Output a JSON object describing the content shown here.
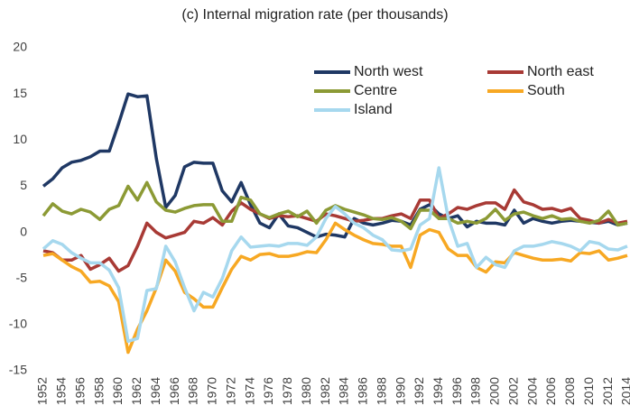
{
  "chart_data": {
    "type": "line",
    "title": "(c) Internal migration rate (per thousands)",
    "x": [
      1952,
      1953,
      1954,
      1955,
      1956,
      1957,
      1958,
      1959,
      1960,
      1961,
      1962,
      1963,
      1964,
      1965,
      1966,
      1967,
      1968,
      1969,
      1970,
      1971,
      1972,
      1973,
      1974,
      1975,
      1976,
      1977,
      1978,
      1979,
      1980,
      1981,
      1982,
      1983,
      1984,
      1985,
      1986,
      1987,
      1988,
      1989,
      1990,
      1991,
      1992,
      1993,
      1994,
      1995,
      1996,
      1997,
      1998,
      1999,
      2000,
      2001,
      2002,
      2003,
      2004,
      2005,
      2006,
      2007,
      2008,
      2009,
      2010,
      2011,
      2012,
      2013,
      2014
    ],
    "xlim": [
      1952,
      2014
    ],
    "xticks": [
      1952,
      1954,
      1956,
      1958,
      1960,
      1962,
      1964,
      1966,
      1968,
      1970,
      1972,
      1974,
      1976,
      1978,
      1980,
      1982,
      1984,
      1986,
      1988,
      1990,
      1992,
      1994,
      1996,
      1998,
      2000,
      2002,
      2004,
      2006,
      2008,
      2010,
      2012,
      2014
    ],
    "ylim": [
      -15,
      20
    ],
    "yticks": [
      -15,
      -10,
      -5,
      0,
      5,
      10,
      15,
      20
    ],
    "grid": false,
    "legend": "upper right",
    "series": [
      {
        "name": "North west",
        "color": "#1f3864",
        "values": [
          5.0,
          5.8,
          7.0,
          7.6,
          7.8,
          8.2,
          8.8,
          8.8,
          11.8,
          15.0,
          14.7,
          14.8,
          8.0,
          2.7,
          4.0,
          7.1,
          7.6,
          7.5,
          7.5,
          4.5,
          3.3,
          5.4,
          3.0,
          1.0,
          0.5,
          2.0,
          0.7,
          0.5,
          0.0,
          -0.5,
          -0.2,
          -0.3,
          -0.5,
          1.5,
          1.0,
          0.8,
          1.0,
          1.3,
          1.2,
          0.8,
          2.5,
          3.0,
          2.0,
          1.5,
          1.8,
          0.6,
          1.2,
          1.0,
          1.0,
          0.8,
          2.4,
          1.0,
          1.5,
          1.2,
          1.0,
          1.2,
          1.3,
          1.2,
          1.1,
          1.0,
          1.2,
          0.8,
          1.0
        ]
      },
      {
        "name": "North east",
        "color": "#a83a35",
        "values": [
          -2.0,
          -2.2,
          -3.0,
          -3.0,
          -2.5,
          -4.0,
          -3.5,
          -2.8,
          -4.2,
          -3.6,
          -1.5,
          1.0,
          0.0,
          -0.6,
          -0.3,
          0.0,
          1.2,
          1.0,
          1.6,
          0.8,
          2.3,
          3.2,
          2.5,
          2.0,
          1.5,
          1.8,
          1.7,
          1.8,
          1.5,
          1.2,
          2.0,
          1.8,
          1.5,
          1.2,
          1.3,
          1.5,
          1.5,
          1.8,
          2.0,
          1.5,
          3.5,
          3.5,
          1.5,
          2.0,
          2.7,
          2.5,
          2.9,
          3.2,
          3.2,
          2.5,
          4.6,
          3.3,
          3.0,
          2.5,
          2.6,
          2.3,
          2.6,
          1.5,
          1.3,
          1.0,
          1.4,
          1.0,
          1.2
        ]
      },
      {
        "name": "Centre",
        "color": "#8c9a35",
        "values": [
          1.8,
          3.1,
          2.3,
          2.0,
          2.5,
          2.2,
          1.4,
          2.5,
          2.9,
          5.0,
          3.5,
          5.4,
          3.3,
          2.4,
          2.2,
          2.6,
          2.9,
          3.0,
          3.0,
          1.2,
          1.2,
          3.8,
          3.5,
          2.0,
          1.6,
          2.0,
          2.3,
          1.7,
          2.3,
          1.0,
          2.4,
          2.9,
          2.5,
          2.2,
          1.9,
          1.5,
          1.4,
          1.6,
          1.2,
          0.4,
          2.4,
          2.4,
          1.5,
          1.5,
          1.0,
          1.2,
          1.0,
          1.5,
          2.5,
          1.3,
          2.0,
          2.2,
          1.8,
          1.5,
          1.8,
          1.4,
          1.5,
          1.2,
          1.0,
          1.3,
          2.3,
          0.8,
          1.0
        ]
      },
      {
        "name": "South",
        "color": "#f7a823",
        "values": [
          -2.5,
          -2.3,
          -3.0,
          -3.7,
          -4.2,
          -5.4,
          -5.3,
          -5.8,
          -7.5,
          -13.0,
          -10.5,
          -8.5,
          -6.0,
          -3.0,
          -4.2,
          -6.5,
          -7.2,
          -8.1,
          -8.1,
          -6.0,
          -4.0,
          -2.6,
          -3.0,
          -2.4,
          -2.3,
          -2.6,
          -2.6,
          -2.4,
          -2.1,
          -2.2,
          -0.8,
          1.0,
          0.3,
          -0.3,
          -0.8,
          -1.2,
          -1.3,
          -1.5,
          -1.5,
          -3.8,
          -0.3,
          0.3,
          0.0,
          -1.8,
          -2.5,
          -2.5,
          -3.8,
          -4.3,
          -3.2,
          -3.3,
          -2.2,
          -2.5,
          -2.8,
          -3.0,
          -3.0,
          -2.9,
          -3.1,
          -2.2,
          -2.3,
          -2.0,
          -3.0,
          -2.8,
          -2.5
        ]
      },
      {
        "name": "Island",
        "color": "#a6d8ee",
        "values": [
          -1.8,
          -0.9,
          -1.3,
          -2.2,
          -2.8,
          -3.3,
          -3.3,
          -4.1,
          -6.0,
          -11.8,
          -11.5,
          -6.3,
          -6.1,
          -1.5,
          -3.2,
          -6.0,
          -8.5,
          -6.5,
          -7.0,
          -5.0,
          -2.0,
          -0.5,
          -1.6,
          -1.5,
          -1.4,
          -1.5,
          -1.2,
          -1.2,
          -1.4,
          -0.5,
          1.5,
          2.8,
          2.0,
          1.0,
          0.5,
          -0.3,
          -0.8,
          -1.9,
          -2.0,
          -1.8,
          0.8,
          1.5,
          7.0,
          1.5,
          -1.5,
          -1.2,
          -3.8,
          -2.7,
          -3.5,
          -3.8,
          -2.0,
          -1.5,
          -1.5,
          -1.3,
          -1.0,
          -1.2,
          -1.5,
          -2.0,
          -1.0,
          -1.2,
          -1.8,
          -1.9,
          -1.5
        ]
      }
    ]
  }
}
